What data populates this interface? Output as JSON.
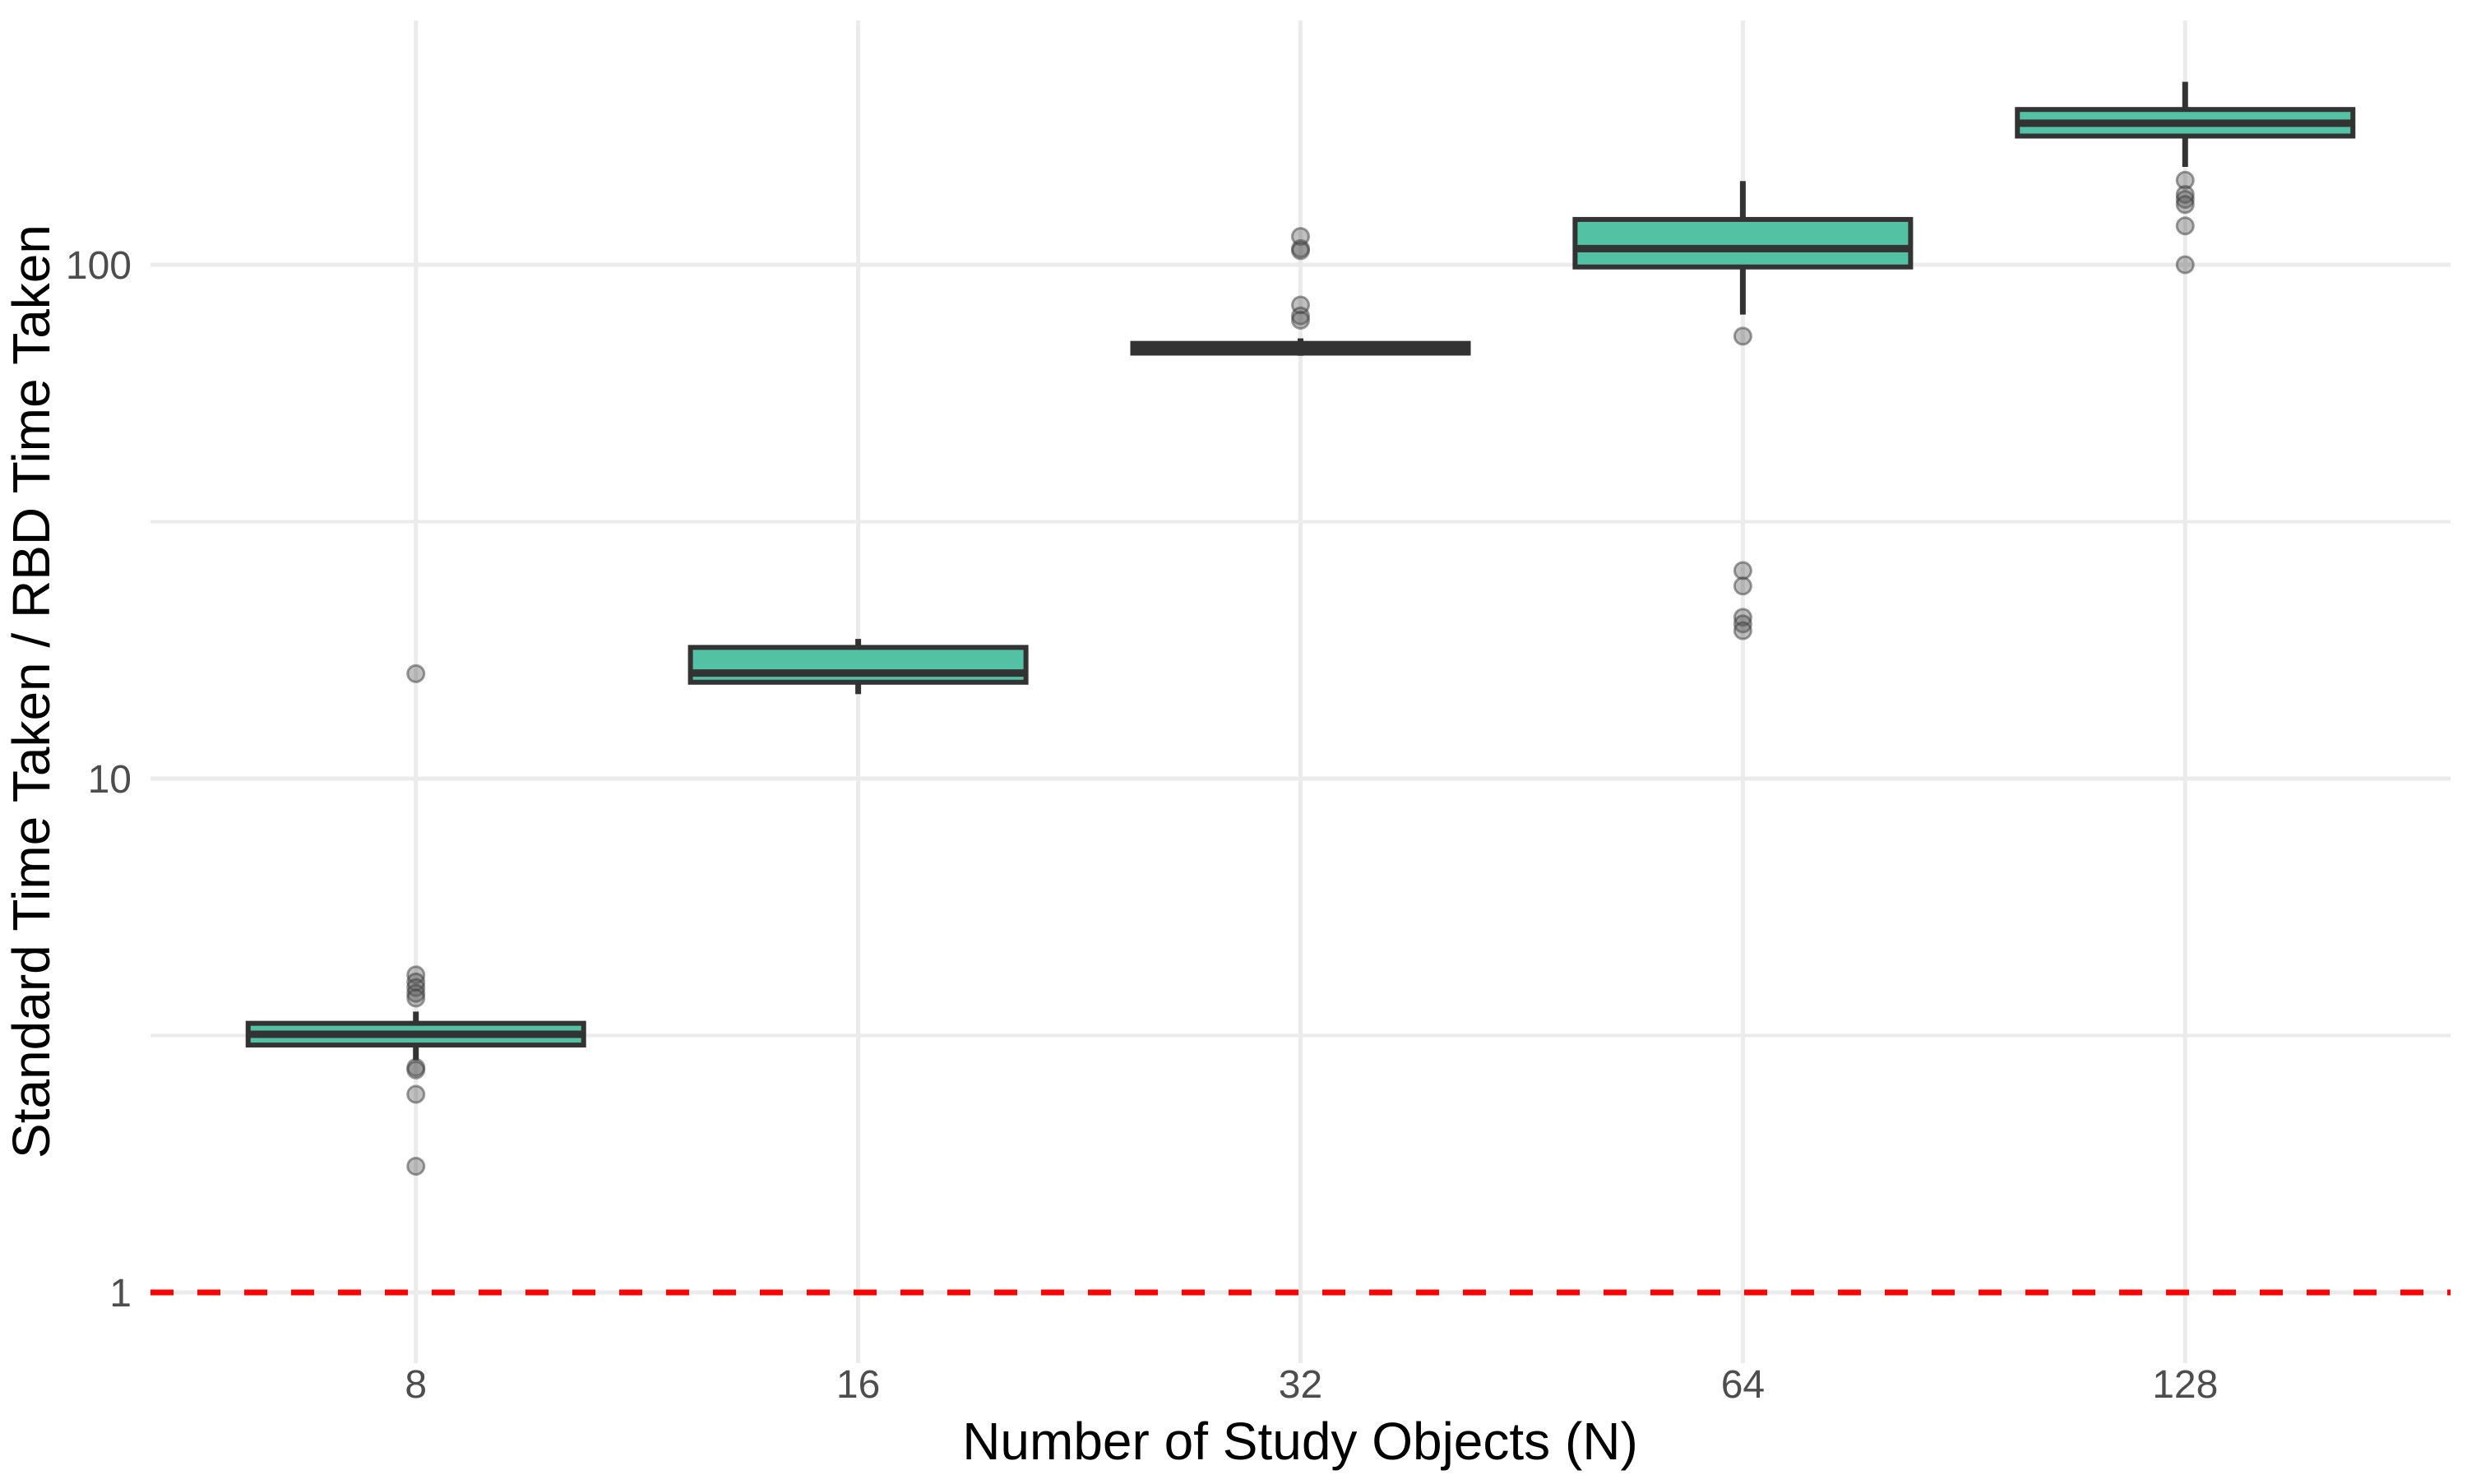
{
  "figure": {
    "background": "#ffffff"
  },
  "chart_data": {
    "type": "box",
    "title": "",
    "xlabel": "Number of Study Objects (N)",
    "ylabel": "Standard Time Taken / RBD Time Taken",
    "x_categories": [
      "8",
      "16",
      "32",
      "64",
      "128"
    ],
    "y_scale": "log10",
    "y_ticks": [
      {
        "value": 1,
        "label": "1"
      },
      {
        "value": 10,
        "label": "10"
      },
      {
        "value": 100,
        "label": "100"
      }
    ],
    "y_minor_ticks": [
      3.162,
      31.62
    ],
    "ylim": [
      0.73,
      299
    ],
    "grid": true,
    "legend": "none",
    "reference_line": {
      "y": 1,
      "color": "#ff0000",
      "style": "dashed"
    },
    "boxes": [
      {
        "category": "8",
        "whisker_low": 2.83,
        "q1": 3.03,
        "median": 3.18,
        "q3": 3.34,
        "whisker_high": 3.52,
        "outliers": [
          16.0,
          4.15,
          4.02,
          3.92,
          3.82,
          3.74,
          2.74,
          2.71,
          2.43,
          1.76
        ]
      },
      {
        "category": "16",
        "whisker_low": 14.6,
        "q1": 15.4,
        "median": 16.05,
        "q3": 18.0,
        "whisker_high": 18.7,
        "outliers": []
      },
      {
        "category": "32",
        "whisker_low": 66.5,
        "q1": 67.3,
        "median": 69.0,
        "q3": 70.3,
        "whisker_high": 71.9,
        "outliers": [
          113.5,
          107.5,
          106.5,
          83.5,
          79.5,
          78.0
        ]
      },
      {
        "category": "64",
        "whisker_low": 80.0,
        "q1": 99.0,
        "median": 107.5,
        "q3": 122.5,
        "whisker_high": 145.5,
        "outliers": [
          72.6,
          25.4,
          23.7,
          20.6,
          20.0,
          19.4
        ]
      },
      {
        "category": "128",
        "whisker_low": 155.0,
        "q1": 178.0,
        "median": 188.5,
        "q3": 200.5,
        "whisker_high": 227.0,
        "outliers": [
          146.0,
          137.0,
          134.0,
          131.0,
          119.0,
          100.0
        ]
      }
    ],
    "colors": {
      "box_fill": "#53c1a3",
      "box_stroke": "#333333",
      "median": "#333333",
      "whisker": "#333333",
      "outlier_fill": "rgba(90,90,90,0.38)",
      "outlier_stroke": "rgba(60,60,60,0.5)",
      "gridline": "#ebebeb",
      "tick_text": "#4d4d4d",
      "axis_title_text": "#000000",
      "reference": "#ff0000"
    }
  }
}
